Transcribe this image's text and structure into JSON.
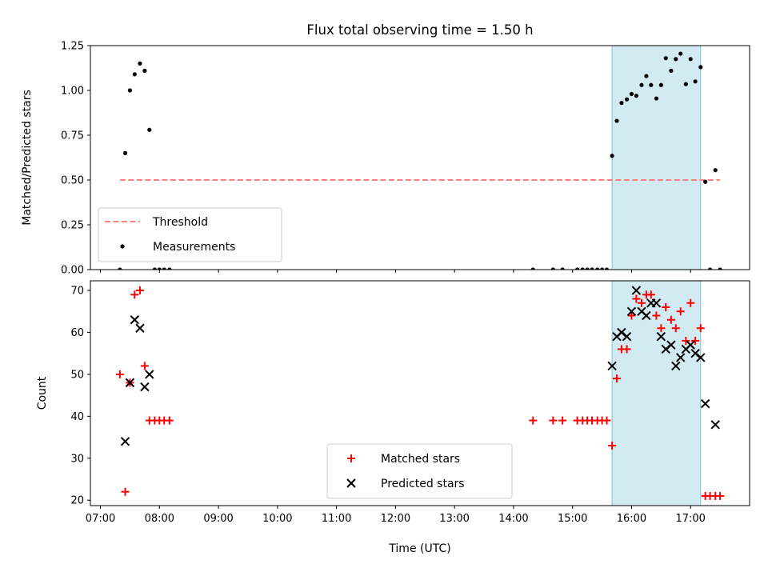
{
  "chart_data": {
    "title": "Flux total observing time = 1.50 h",
    "xlabel": "Time (UTC)",
    "x_ticks": [
      "07:00",
      "08:00",
      "09:00",
      "10:00",
      "11:00",
      "12:00",
      "13:00",
      "14:00",
      "15:00",
      "16:00",
      "17:00"
    ],
    "x_range_hours": [
      6.83,
      18.0
    ],
    "highlight_band_hours": [
      15.67,
      17.17
    ],
    "highlight_color": "#add8e6",
    "panels": [
      {
        "type": "scatter",
        "ylabel": "Matched/Predicted stars",
        "ylim": [
          0,
          1.25
        ],
        "y_ticks": [
          "0.00",
          "0.25",
          "0.50",
          "0.75",
          "1.00",
          "1.25"
        ],
        "legend": {
          "position": "lower-left",
          "entries": [
            "Threshold",
            "Measurements"
          ]
        },
        "threshold": {
          "name": "Threshold",
          "y": 0.5,
          "x_range_hours": [
            7.33,
            17.5
          ],
          "color": "#ff8080"
        },
        "series": [
          {
            "name": "Measurements",
            "marker": "dot",
            "color": "#000000",
            "points": [
              [
                7.33,
                0.0
              ],
              [
                7.42,
                0.65
              ],
              [
                7.5,
                1.0
              ],
              [
                7.58,
                1.09
              ],
              [
                7.67,
                1.15
              ],
              [
                7.75,
                1.11
              ],
              [
                7.83,
                0.78
              ],
              [
                7.92,
                0.0
              ],
              [
                8.0,
                0.0
              ],
              [
                8.08,
                0.0
              ],
              [
                8.17,
                0.0
              ],
              [
                14.33,
                0.0
              ],
              [
                14.67,
                0.0
              ],
              [
                14.83,
                0.0
              ],
              [
                15.08,
                0.0
              ],
              [
                15.17,
                0.0
              ],
              [
                15.25,
                0.0
              ],
              [
                15.33,
                0.0
              ],
              [
                15.42,
                0.0
              ],
              [
                15.5,
                0.0
              ],
              [
                15.58,
                0.0
              ],
              [
                15.67,
                0.635
              ],
              [
                15.75,
                0.83
              ],
              [
                15.83,
                0.93
              ],
              [
                15.92,
                0.95
              ],
              [
                16.0,
                0.98
              ],
              [
                16.08,
                0.97
              ],
              [
                16.17,
                1.03
              ],
              [
                16.25,
                1.08
              ],
              [
                16.33,
                1.03
              ],
              [
                16.42,
                0.955
              ],
              [
                16.5,
                1.03
              ],
              [
                16.58,
                1.18
              ],
              [
                16.67,
                1.11
              ],
              [
                16.75,
                1.175
              ],
              [
                16.83,
                1.205
              ],
              [
                16.92,
                1.035
              ],
              [
                17.0,
                1.175
              ],
              [
                17.08,
                1.05
              ],
              [
                17.17,
                1.13
              ],
              [
                17.25,
                0.49
              ],
              [
                17.33,
                0.0
              ],
              [
                17.42,
                0.555
              ],
              [
                17.5,
                0.0
              ]
            ]
          }
        ]
      },
      {
        "type": "scatter",
        "ylabel": "Count",
        "ylim": [
          18.7,
          72.3
        ],
        "y_ticks": [
          "20",
          "30",
          "40",
          "50",
          "60",
          "70"
        ],
        "legend": {
          "position": "bottom-center",
          "entries": [
            "Matched stars",
            "Predicted stars"
          ]
        },
        "series": [
          {
            "name": "Matched stars",
            "marker": "plus",
            "color": "#ff0000",
            "points": [
              [
                7.33,
                50
              ],
              [
                7.42,
                22
              ],
              [
                7.5,
                48
              ],
              [
                7.58,
                69
              ],
              [
                7.67,
                70
              ],
              [
                7.75,
                52
              ],
              [
                7.83,
                39
              ],
              [
                7.92,
                39
              ],
              [
                8.0,
                39
              ],
              [
                8.08,
                39
              ],
              [
                8.17,
                39
              ],
              [
                14.33,
                39
              ],
              [
                14.67,
                39
              ],
              [
                14.83,
                39
              ],
              [
                15.08,
                39
              ],
              [
                15.17,
                39
              ],
              [
                15.25,
                39
              ],
              [
                15.33,
                39
              ],
              [
                15.42,
                39
              ],
              [
                15.5,
                39
              ],
              [
                15.58,
                39
              ],
              [
                15.67,
                33
              ],
              [
                15.75,
                49
              ],
              [
                15.83,
                56
              ],
              [
                15.92,
                56
              ],
              [
                16.0,
                64
              ],
              [
                16.08,
                68
              ],
              [
                16.17,
                67
              ],
              [
                16.25,
                69
              ],
              [
                16.33,
                69
              ],
              [
                16.42,
                64
              ],
              [
                16.5,
                61
              ],
              [
                16.58,
                66
              ],
              [
                16.67,
                63
              ],
              [
                16.75,
                61
              ],
              [
                16.83,
                65
              ],
              [
                16.92,
                58
              ],
              [
                17.0,
                67
              ],
              [
                17.08,
                58
              ],
              [
                17.17,
                61
              ],
              [
                17.25,
                21
              ],
              [
                17.33,
                21
              ],
              [
                17.42,
                21
              ],
              [
                17.5,
                21
              ]
            ]
          },
          {
            "name": "Predicted stars",
            "marker": "x",
            "color": "#000000",
            "points": [
              [
                7.42,
                34
              ],
              [
                7.5,
                48
              ],
              [
                7.58,
                63
              ],
              [
                7.67,
                61
              ],
              [
                7.75,
                47
              ],
              [
                7.83,
                50
              ],
              [
                15.67,
                52
              ],
              [
                15.75,
                59
              ],
              [
                15.83,
                60
              ],
              [
                15.92,
                59
              ],
              [
                16.0,
                65
              ],
              [
                16.08,
                70
              ],
              [
                16.17,
                65
              ],
              [
                16.25,
                64
              ],
              [
                16.33,
                67
              ],
              [
                16.42,
                67
              ],
              [
                16.5,
                59
              ],
              [
                16.58,
                56
              ],
              [
                16.67,
                57
              ],
              [
                16.75,
                52
              ],
              [
                16.83,
                54
              ],
              [
                16.92,
                56
              ],
              [
                17.0,
                57
              ],
              [
                17.08,
                55
              ],
              [
                17.17,
                54
              ],
              [
                17.25,
                43
              ],
              [
                17.42,
                38
              ]
            ]
          }
        ]
      }
    ]
  }
}
